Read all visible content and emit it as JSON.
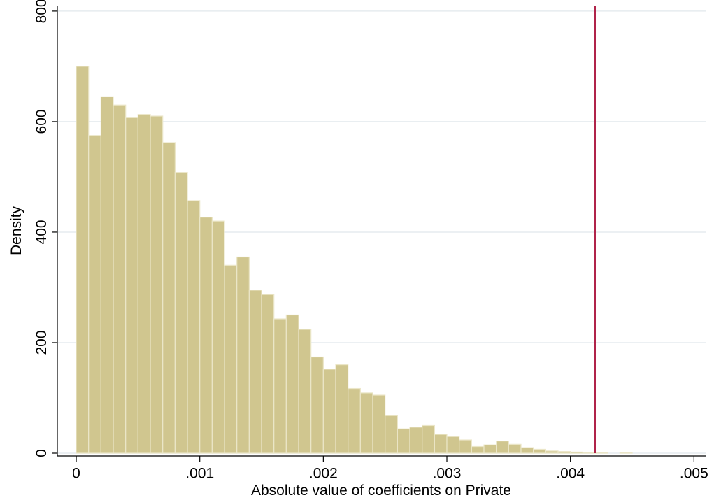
{
  "chart_data": {
    "type": "histogram",
    "xlabel": "Absolute value of coefficients on Private",
    "ylabel": "Density",
    "bins": [
      0,
      0.0001,
      0.0002,
      0.0003,
      0.0004,
      0.0005,
      0.0006,
      0.0007,
      0.0008,
      0.0009,
      0.001,
      0.0011,
      0.0012,
      0.0013,
      0.0014,
      0.0015,
      0.0016,
      0.0017,
      0.0018,
      0.0019,
      0.002,
      0.0021,
      0.0022,
      0.0023,
      0.0024,
      0.0025,
      0.0026,
      0.0027,
      0.0028,
      0.0029,
      0.003,
      0.0031,
      0.0032,
      0.0033,
      0.0034,
      0.0035,
      0.0036,
      0.0037,
      0.0038,
      0.0039,
      0.004,
      0.0041,
      0.0042,
      0.0043,
      0.0044,
      0.0045
    ],
    "values": [
      700,
      575,
      645,
      630,
      607,
      613,
      610,
      562,
      508,
      457,
      427,
      420,
      340,
      355,
      295,
      287,
      243,
      250,
      224,
      174,
      152,
      160,
      117,
      109,
      105,
      68,
      44,
      47,
      50,
      34,
      30,
      24,
      12,
      15,
      22,
      16,
      10,
      7,
      4,
      3,
      2,
      1,
      1,
      0,
      1
    ],
    "color": "#d0c68f",
    "edge_color": "#ebe6c8",
    "xlim": [
      -0.000153,
      0.0051
    ],
    "ylim": [
      0,
      810
    ],
    "xticks": [
      0,
      {
        "value": 0.001,
        "label": ".001"
      },
      {
        "value": 0.002,
        "label": ".002"
      },
      {
        "value": 0.003,
        "label": ".003"
      },
      {
        "value": 0.004,
        "label": ".004"
      },
      {
        "value": 0.005,
        "label": ".005"
      }
    ],
    "yticks": [
      0,
      200,
      400,
      600,
      800
    ],
    "grid": true,
    "vline": {
      "value": 0.0042,
      "color": "#b0234a"
    }
  }
}
